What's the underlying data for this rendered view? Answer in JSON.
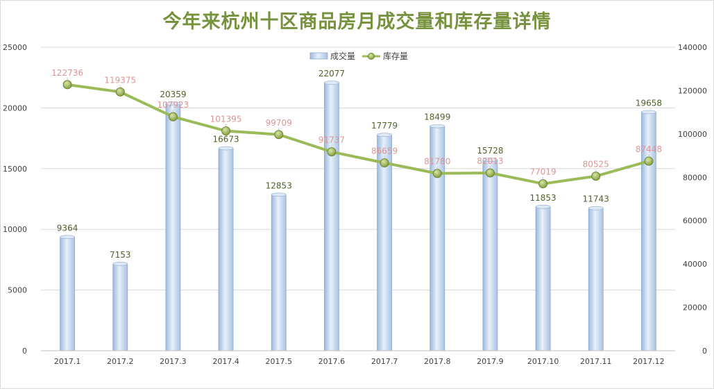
{
  "chart_data": {
    "type": "bar+line",
    "title": "今年来杭州十区商品房月成交量和库存量详情",
    "categories": [
      "2017.1",
      "2017.2",
      "2017.3",
      "2017.4",
      "2017.5",
      "2017.6",
      "2017.7",
      "2017.8",
      "2017.9",
      "2017.10",
      "2017.11",
      "2017.12"
    ],
    "series": [
      {
        "name": "成交量",
        "type": "bar",
        "axis": "left",
        "values": [
          9364,
          7153,
          20359,
          16673,
          12853,
          22077,
          17779,
          18499,
          15728,
          11853,
          11743,
          19658
        ],
        "color": "#b8cce4"
      },
      {
        "name": "库存量",
        "type": "line",
        "axis": "right",
        "values": [
          122736,
          119375,
          107923,
          101395,
          99709,
          91737,
          86659,
          81780,
          82013,
          77019,
          80525,
          87448
        ],
        "color": "#9bbb59"
      }
    ],
    "y_left": {
      "min": 0,
      "max": 25000,
      "ticks": [
        "0",
        "5000",
        "10000",
        "15000",
        "20000",
        "25000"
      ]
    },
    "y_right": {
      "min": 0,
      "max": 140000,
      "ticks": [
        "0",
        "20000",
        "40000",
        "60000",
        "80000",
        "100000",
        "120000",
        "140000"
      ]
    },
    "bar_label_color": "#4f6228",
    "line_label_color": "#d99694",
    "grid": true,
    "legend_position": "top-center"
  }
}
